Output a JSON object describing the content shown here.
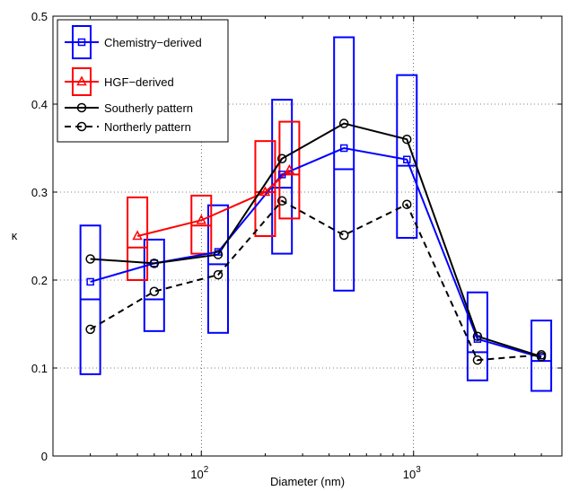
{
  "chart_data": {
    "type": "line",
    "xscale": "log",
    "xlim": [
      20,
      5000
    ],
    "ylim": [
      0,
      0.5
    ],
    "xlabel": "Diameter (nm)",
    "ylabel": "κ",
    "grid": true,
    "legend_position": "top-left",
    "x_ticks": [
      {
        "value": 100,
        "base": "10",
        "exp": "2"
      },
      {
        "value": 1000,
        "base": "10",
        "exp": "3"
      }
    ],
    "y_ticks": [
      {
        "value": 0,
        "label": "0"
      },
      {
        "value": 0.1,
        "label": "0.1"
      },
      {
        "value": 0.2,
        "label": "0.2"
      },
      {
        "value": 0.3,
        "label": "0.3"
      },
      {
        "value": 0.4,
        "label": "0.4"
      },
      {
        "value": 0.5,
        "label": "0.5"
      }
    ],
    "series": [
      {
        "name": "Chemistry−derived",
        "color": "#0000ff",
        "marker": "square",
        "line_style": "solid",
        "x": [
          30,
          60,
          120,
          240,
          470,
          930,
          2000,
          4000
        ],
        "y": [
          0.198,
          0.219,
          0.232,
          0.32,
          0.35,
          0.337,
          0.133,
          0.112
        ],
        "boxes": [
          {
            "x": 30,
            "low": 0.093,
            "median": 0.178,
            "high": 0.262
          },
          {
            "x": 60,
            "low": 0.142,
            "median": 0.178,
            "high": 0.246
          },
          {
            "x": 120,
            "low": 0.14,
            "median": 0.218,
            "high": 0.285
          },
          {
            "x": 240,
            "low": 0.23,
            "median": 0.305,
            "high": 0.405
          },
          {
            "x": 470,
            "low": 0.188,
            "median": 0.326,
            "high": 0.476
          },
          {
            "x": 930,
            "low": 0.248,
            "median": 0.33,
            "high": 0.433
          },
          {
            "x": 2000,
            "low": 0.086,
            "median": 0.118,
            "high": 0.186
          },
          {
            "x": 4000,
            "low": 0.074,
            "median": 0.108,
            "high": 0.154
          }
        ]
      },
      {
        "name": "HGF−derived",
        "color": "#ff0000",
        "marker": "triangle",
        "line_style": "solid",
        "x": [
          50,
          100,
          200,
          260
        ],
        "y": [
          0.25,
          0.268,
          0.3,
          0.325
        ],
        "boxes": [
          {
            "x": 50,
            "low": 0.2,
            "median": 0.237,
            "high": 0.294
          },
          {
            "x": 100,
            "low": 0.23,
            "median": 0.262,
            "high": 0.296
          },
          {
            "x": 200,
            "low": 0.25,
            "median": 0.3,
            "high": 0.358
          },
          {
            "x": 260,
            "low": 0.27,
            "median": 0.32,
            "high": 0.38
          }
        ]
      },
      {
        "name": "Southerly pattern",
        "color": "#000000",
        "marker": "circle",
        "line_style": "solid",
        "x": [
          30,
          60,
          120,
          240,
          470,
          930,
          2000,
          4000
        ],
        "y": [
          0.224,
          0.219,
          0.229,
          0.338,
          0.378,
          0.36,
          0.136,
          0.113
        ]
      },
      {
        "name": "Northerly pattern",
        "color": "#000000",
        "marker": "circle",
        "line_style": "dashed",
        "x": [
          30,
          60,
          120,
          240,
          470,
          930,
          2000,
          4000
        ],
        "y": [
          0.144,
          0.187,
          0.206,
          0.29,
          0.251,
          0.286,
          0.109,
          0.115
        ]
      }
    ]
  }
}
